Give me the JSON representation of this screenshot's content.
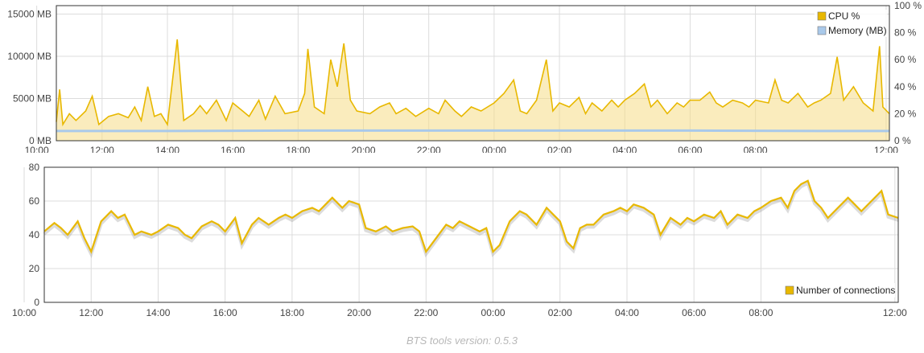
{
  "chart_data": [
    {
      "type": "line",
      "title": "",
      "x_ticks": [
        "12:00",
        "14:00",
        "16:00",
        "18:00",
        "20:00",
        "22:00",
        "00:00",
        "02:00",
        "04:00",
        "06:00",
        "08:00",
        "10:00",
        "12:00"
      ],
      "x_range_hours": [
        10.6,
        36.1
      ],
      "y_left": {
        "ticks": [
          "0 MB",
          "5000 MB",
          "10000 MB",
          "15000 MB"
        ],
        "range": [
          0,
          16000
        ],
        "unit": "MB"
      },
      "y_right": {
        "ticks": [
          "0 %",
          "20 %",
          "40 %",
          "60 %",
          "80 %",
          "100 %"
        ],
        "range": [
          0,
          100
        ],
        "unit": "%"
      },
      "grid": true,
      "legend_position": "top-right",
      "series": [
        {
          "name": "CPU %",
          "color": "#e8b800",
          "axis": "right",
          "points": [
            [
              10.6,
              14
            ],
            [
              10.7,
              38
            ],
            [
              10.8,
              12
            ],
            [
              11.0,
              20
            ],
            [
              11.2,
              15
            ],
            [
              11.5,
              22
            ],
            [
              11.7,
              33
            ],
            [
              11.9,
              12
            ],
            [
              12.2,
              18
            ],
            [
              12.5,
              20
            ],
            [
              12.8,
              17
            ],
            [
              13.0,
              25
            ],
            [
              13.2,
              15
            ],
            [
              13.4,
              40
            ],
            [
              13.6,
              18
            ],
            [
              13.8,
              20
            ],
            [
              14.0,
              12
            ],
            [
              14.3,
              75
            ],
            [
              14.5,
              15
            ],
            [
              14.8,
              20
            ],
            [
              15.0,
              26
            ],
            [
              15.2,
              20
            ],
            [
              15.5,
              30
            ],
            [
              15.8,
              15
            ],
            [
              16.0,
              28
            ],
            [
              16.3,
              22
            ],
            [
              16.5,
              18
            ],
            [
              16.8,
              30
            ],
            [
              17.0,
              16
            ],
            [
              17.3,
              33
            ],
            [
              17.6,
              20
            ],
            [
              18.0,
              22
            ],
            [
              18.2,
              35
            ],
            [
              18.3,
              68
            ],
            [
              18.5,
              25
            ],
            [
              18.8,
              20
            ],
            [
              19.0,
              60
            ],
            [
              19.2,
              40
            ],
            [
              19.4,
              72
            ],
            [
              19.6,
              30
            ],
            [
              19.8,
              22
            ],
            [
              20.2,
              20
            ],
            [
              20.5,
              25
            ],
            [
              20.8,
              28
            ],
            [
              21.0,
              20
            ],
            [
              21.3,
              24
            ],
            [
              21.6,
              18
            ],
            [
              22.0,
              24
            ],
            [
              22.3,
              20
            ],
            [
              22.5,
              30
            ],
            [
              22.8,
              22
            ],
            [
              23.0,
              18
            ],
            [
              23.3,
              25
            ],
            [
              23.6,
              22
            ],
            [
              24.0,
              28
            ],
            [
              24.3,
              35
            ],
            [
              24.6,
              45
            ],
            [
              24.8,
              22
            ],
            [
              25.0,
              20
            ],
            [
              25.3,
              30
            ],
            [
              25.6,
              60
            ],
            [
              25.8,
              22
            ],
            [
              26.0,
              28
            ],
            [
              26.3,
              25
            ],
            [
              26.6,
              32
            ],
            [
              26.8,
              20
            ],
            [
              27.0,
              28
            ],
            [
              27.3,
              22
            ],
            [
              27.6,
              30
            ],
            [
              27.8,
              25
            ],
            [
              28.0,
              30
            ],
            [
              28.3,
              35
            ],
            [
              28.6,
              42
            ],
            [
              28.8,
              25
            ],
            [
              29.0,
              30
            ],
            [
              29.3,
              20
            ],
            [
              29.6,
              28
            ],
            [
              29.8,
              25
            ],
            [
              30.0,
              30
            ],
            [
              30.3,
              30
            ],
            [
              30.6,
              36
            ],
            [
              30.8,
              28
            ],
            [
              31.0,
              25
            ],
            [
              31.3,
              30
            ],
            [
              31.6,
              28
            ],
            [
              31.8,
              25
            ],
            [
              32.0,
              30
            ],
            [
              32.4,
              28
            ],
            [
              32.6,
              45
            ],
            [
              32.8,
              30
            ],
            [
              33.0,
              28
            ],
            [
              33.3,
              35
            ],
            [
              33.6,
              25
            ],
            [
              33.8,
              28
            ],
            [
              34.0,
              30
            ],
            [
              34.3,
              35
            ],
            [
              34.5,
              62
            ],
            [
              34.7,
              30
            ],
            [
              35.0,
              40
            ],
            [
              35.3,
              28
            ],
            [
              35.6,
              22
            ],
            [
              35.8,
              70
            ],
            [
              35.9,
              25
            ],
            [
              36.1,
              20
            ]
          ]
        },
        {
          "name": "Memory (MB)",
          "color": "#a9c9ea",
          "axis": "left",
          "points": [
            [
              10.6,
              1150
            ],
            [
              14.0,
              1150
            ],
            [
              18.0,
              1200
            ],
            [
              22.0,
              1200
            ],
            [
              26.0,
              1200
            ],
            [
              30.0,
              1200
            ],
            [
              34.0,
              1150
            ],
            [
              36.1,
              1150
            ]
          ]
        }
      ]
    },
    {
      "type": "line",
      "title": "",
      "x_ticks": [
        "12:00",
        "14:00",
        "16:00",
        "18:00",
        "20:00",
        "22:00",
        "00:00",
        "02:00",
        "04:00",
        "06:00",
        "08:00",
        "10:00",
        "12:00"
      ],
      "x_range_hours": [
        10.6,
        36.1
      ],
      "y_ticks": [
        "0",
        "20",
        "40",
        "60",
        "80"
      ],
      "ylim": [
        0,
        80
      ],
      "grid": true,
      "legend_position": "bottom-right",
      "series": [
        {
          "name": "Number of connections",
          "color": "#e8b800",
          "points": [
            [
              10.6,
              42
            ],
            [
              10.9,
              47
            ],
            [
              11.1,
              44
            ],
            [
              11.3,
              40
            ],
            [
              11.6,
              48
            ],
            [
              11.8,
              38
            ],
            [
              12.0,
              30
            ],
            [
              12.3,
              48
            ],
            [
              12.6,
              54
            ],
            [
              12.8,
              50
            ],
            [
              13.0,
              52
            ],
            [
              13.3,
              40
            ],
            [
              13.5,
              42
            ],
            [
              13.8,
              40
            ],
            [
              14.0,
              42
            ],
            [
              14.3,
              46
            ],
            [
              14.6,
              44
            ],
            [
              14.8,
              40
            ],
            [
              15.0,
              38
            ],
            [
              15.3,
              45
            ],
            [
              15.6,
              48
            ],
            [
              15.8,
              46
            ],
            [
              16.0,
              42
            ],
            [
              16.3,
              50
            ],
            [
              16.5,
              35
            ],
            [
              16.8,
              46
            ],
            [
              17.0,
              50
            ],
            [
              17.3,
              46
            ],
            [
              17.6,
              50
            ],
            [
              17.8,
              52
            ],
            [
              18.0,
              50
            ],
            [
              18.3,
              54
            ],
            [
              18.6,
              56
            ],
            [
              18.8,
              54
            ],
            [
              19.0,
              58
            ],
            [
              19.2,
              62
            ],
            [
              19.5,
              56
            ],
            [
              19.7,
              60
            ],
            [
              20.0,
              58
            ],
            [
              20.2,
              44
            ],
            [
              20.5,
              42
            ],
            [
              20.8,
              45
            ],
            [
              21.0,
              42
            ],
            [
              21.3,
              44
            ],
            [
              21.6,
              45
            ],
            [
              21.8,
              42
            ],
            [
              22.0,
              30
            ],
            [
              22.3,
              38
            ],
            [
              22.6,
              46
            ],
            [
              22.8,
              44
            ],
            [
              23.0,
              48
            ],
            [
              23.3,
              45
            ],
            [
              23.6,
              42
            ],
            [
              23.8,
              44
            ],
            [
              24.0,
              30
            ],
            [
              24.2,
              34
            ],
            [
              24.5,
              48
            ],
            [
              24.8,
              54
            ],
            [
              25.0,
              52
            ],
            [
              25.3,
              46
            ],
            [
              25.6,
              56
            ],
            [
              25.8,
              52
            ],
            [
              26.0,
              48
            ],
            [
              26.2,
              36
            ],
            [
              26.4,
              32
            ],
            [
              26.6,
              44
            ],
            [
              26.8,
              46
            ],
            [
              27.0,
              46
            ],
            [
              27.3,
              52
            ],
            [
              27.6,
              54
            ],
            [
              27.8,
              56
            ],
            [
              28.0,
              54
            ],
            [
              28.2,
              58
            ],
            [
              28.5,
              56
            ],
            [
              28.8,
              52
            ],
            [
              29.0,
              40
            ],
            [
              29.3,
              50
            ],
            [
              29.6,
              46
            ],
            [
              29.8,
              50
            ],
            [
              30.0,
              48
            ],
            [
              30.3,
              52
            ],
            [
              30.6,
              50
            ],
            [
              30.8,
              54
            ],
            [
              31.0,
              46
            ],
            [
              31.3,
              52
            ],
            [
              31.6,
              50
            ],
            [
              31.8,
              54
            ],
            [
              32.0,
              56
            ],
            [
              32.3,
              60
            ],
            [
              32.6,
              62
            ],
            [
              32.8,
              56
            ],
            [
              33.0,
              66
            ],
            [
              33.2,
              70
            ],
            [
              33.4,
              72
            ],
            [
              33.6,
              60
            ],
            [
              33.8,
              56
            ],
            [
              34.0,
              50
            ],
            [
              34.3,
              56
            ],
            [
              34.6,
              62
            ],
            [
              34.8,
              58
            ],
            [
              35.0,
              54
            ],
            [
              35.3,
              60
            ],
            [
              35.6,
              66
            ],
            [
              35.8,
              52
            ],
            [
              36.1,
              50
            ]
          ]
        }
      ]
    }
  ],
  "footer": "BTS tools version: 0.5.3"
}
